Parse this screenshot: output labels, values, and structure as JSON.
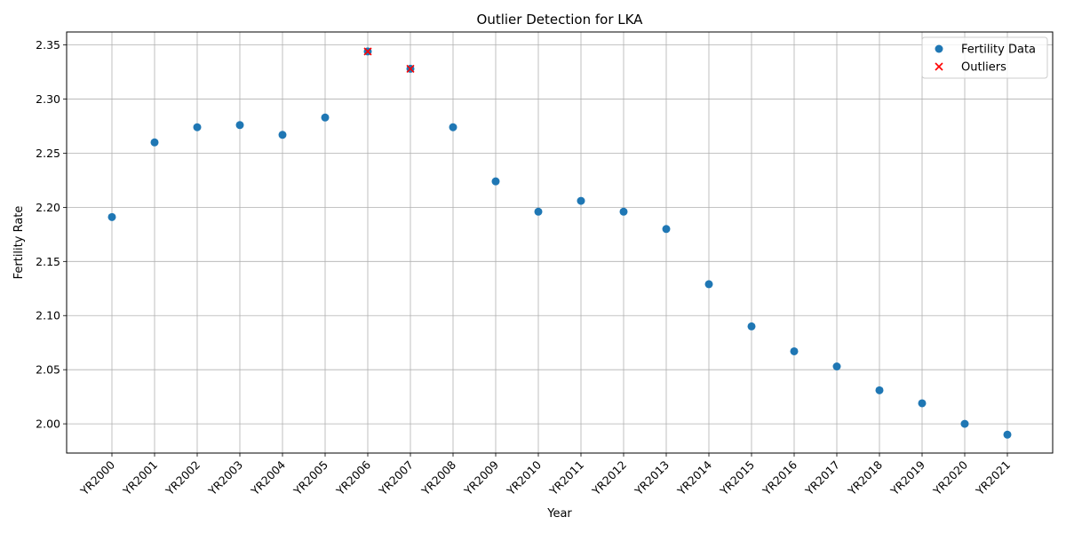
{
  "chart_data": {
    "type": "scatter",
    "title": "Outlier Detection for LKA",
    "xlabel": "Year",
    "ylabel": "Fertility Rate",
    "categories": [
      "YR2000",
      "YR2001",
      "YR2002",
      "YR2003",
      "YR2004",
      "YR2005",
      "YR2006",
      "YR2007",
      "YR2008",
      "YR2009",
      "YR2010",
      "YR2011",
      "YR2012",
      "YR2013",
      "YR2014",
      "YR2015",
      "YR2016",
      "YR2017",
      "YR2018",
      "YR2019",
      "YR2020",
      "YR2021"
    ],
    "series": [
      {
        "name": "Fertility Data",
        "marker": "circle",
        "color": "#1f77b4",
        "values": [
          2.191,
          2.26,
          2.274,
          2.276,
          2.267,
          2.283,
          2.344,
          2.328,
          2.274,
          2.224,
          2.196,
          2.206,
          2.196,
          2.18,
          2.129,
          2.09,
          2.067,
          2.053,
          2.031,
          2.019,
          2.0,
          1.99
        ]
      },
      {
        "name": "Outliers",
        "marker": "x",
        "color": "#ff0000",
        "x": [
          "YR2006",
          "YR2007"
        ],
        "values": [
          2.344,
          2.328
        ]
      }
    ],
    "ylim": [
      1.973,
      2.362
    ],
    "yticks": [
      "2.00",
      "2.05",
      "2.10",
      "2.15",
      "2.20",
      "2.25",
      "2.30",
      "2.35"
    ],
    "grid": true,
    "legend_position": "top-right"
  }
}
